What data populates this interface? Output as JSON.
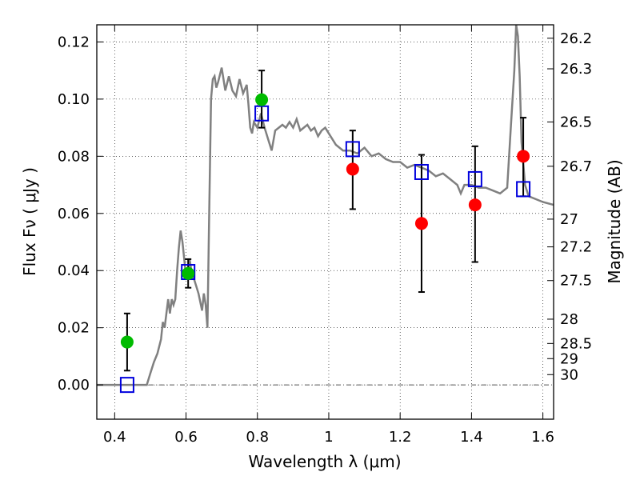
{
  "chart_data": {
    "type": "scatter",
    "xlabel": "Wavelength  λ (μm)",
    "ylabel": "Flux  Fν  ( μJy )",
    "ylabel_right": "Magnitude (AB)",
    "xlim": [
      0.35,
      1.63
    ],
    "ylim": [
      -0.012,
      0.126
    ],
    "grid": true,
    "x_ticks": [
      0.4,
      0.6,
      0.8,
      1.0,
      1.2,
      1.4,
      1.6
    ],
    "x_tick_labels": [
      "0.4",
      "0.6",
      "0.8",
      "1",
      "1.2",
      "1.4",
      "1.6"
    ],
    "y_ticks": [
      0.0,
      0.02,
      0.04,
      0.06,
      0.08,
      0.1,
      0.12
    ],
    "y_tick_labels": [
      "0.00",
      "0.02",
      "0.04",
      "0.06",
      "0.08",
      "0.10",
      "0.12"
    ],
    "right_ticks": [
      {
        "label": "26.2",
        "flux": 0.1213
      },
      {
        "label": "26.3",
        "flux": 0.1106
      },
      {
        "label": "26.5",
        "flux": 0.092
      },
      {
        "label": "26.7",
        "flux": 0.0765
      },
      {
        "label": "27",
        "flux": 0.058
      },
      {
        "label": "27.2",
        "flux": 0.0483
      },
      {
        "label": "27.5",
        "flux": 0.0365
      },
      {
        "label": "28",
        "flux": 0.023
      },
      {
        "label": "28.5",
        "flux": 0.0145
      },
      {
        "label": "29",
        "flux": 0.0092
      },
      {
        "label": "30",
        "flux": 0.0036
      }
    ],
    "colors": {
      "green": "#00bb00",
      "red": "#ff0000",
      "square": "#0000dd",
      "model": "#808080",
      "errorbar": "#000000"
    },
    "model_spectrum": {
      "x": [
        0.35,
        0.49,
        0.5,
        0.51,
        0.52,
        0.53,
        0.535,
        0.54,
        0.55,
        0.555,
        0.56,
        0.565,
        0.57,
        0.575,
        0.58,
        0.585,
        0.59,
        0.6,
        0.605,
        0.61,
        0.615,
        0.625,
        0.635,
        0.645,
        0.65,
        0.655,
        0.66,
        0.665,
        0.67,
        0.675,
        0.68,
        0.685,
        0.69,
        0.7,
        0.71,
        0.72,
        0.73,
        0.74,
        0.75,
        0.76,
        0.77,
        0.775,
        0.78,
        0.785,
        0.79,
        0.8,
        0.81,
        0.82,
        0.83,
        0.84,
        0.85,
        0.86,
        0.87,
        0.88,
        0.89,
        0.9,
        0.91,
        0.92,
        0.93,
        0.94,
        0.95,
        0.96,
        0.97,
        0.98,
        0.99,
        1.0,
        1.02,
        1.04,
        1.06,
        1.08,
        1.1,
        1.12,
        1.14,
        1.16,
        1.18,
        1.2,
        1.22,
        1.24,
        1.26,
        1.28,
        1.3,
        1.32,
        1.34,
        1.36,
        1.37,
        1.38,
        1.4,
        1.42,
        1.44,
        1.46,
        1.48,
        1.5,
        1.51,
        1.52,
        1.525,
        1.53,
        1.535,
        1.54,
        1.55,
        1.56,
        1.6,
        1.63
      ],
      "y": [
        0.0,
        0.0,
        0.004,
        0.008,
        0.011,
        0.016,
        0.022,
        0.02,
        0.03,
        0.025,
        0.03,
        0.028,
        0.03,
        0.04,
        0.048,
        0.054,
        0.05,
        0.038,
        0.04,
        0.044,
        0.04,
        0.036,
        0.032,
        0.026,
        0.032,
        0.028,
        0.02,
        0.06,
        0.1,
        0.107,
        0.108,
        0.104,
        0.106,
        0.111,
        0.103,
        0.108,
        0.103,
        0.101,
        0.107,
        0.102,
        0.105,
        0.098,
        0.09,
        0.088,
        0.092,
        0.09,
        0.095,
        0.09,
        0.086,
        0.082,
        0.089,
        0.09,
        0.091,
        0.09,
        0.092,
        0.09,
        0.093,
        0.089,
        0.09,
        0.091,
        0.089,
        0.09,
        0.087,
        0.089,
        0.09,
        0.088,
        0.084,
        0.082,
        0.082,
        0.081,
        0.083,
        0.08,
        0.081,
        0.079,
        0.078,
        0.078,
        0.076,
        0.077,
        0.076,
        0.075,
        0.073,
        0.074,
        0.072,
        0.07,
        0.067,
        0.07,
        0.07,
        0.069,
        0.069,
        0.068,
        0.067,
        0.069,
        0.09,
        0.11,
        0.126,
        0.122,
        0.108,
        0.085,
        0.07,
        0.066,
        0.064,
        0.063
      ]
    },
    "errorbars": [
      {
        "x": 0.435,
        "lo": 0.005,
        "hi": 0.025
      },
      {
        "x": 0.606,
        "lo": 0.034,
        "hi": 0.044
      },
      {
        "x": 0.812,
        "lo": 0.09,
        "hi": 0.11
      },
      {
        "x": 1.067,
        "lo": 0.0615,
        "hi": 0.089
      },
      {
        "x": 1.26,
        "lo": 0.0325,
        "hi": 0.0805
      },
      {
        "x": 1.41,
        "lo": 0.043,
        "hi": 0.0835
      },
      {
        "x": 1.545,
        "lo": 0.066,
        "hi": 0.0935
      }
    ],
    "green_points": {
      "x": [
        0.435,
        0.606,
        0.812
      ],
      "y": [
        0.015,
        0.039,
        0.0998
      ]
    },
    "red_points": {
      "x": [
        1.067,
        1.26,
        1.41,
        1.545
      ],
      "y": [
        0.0755,
        0.0565,
        0.063,
        0.08
      ]
    },
    "model_squares": {
      "x": [
        0.435,
        0.606,
        0.812,
        1.067,
        1.26,
        1.41,
        1.545
      ],
      "y": [
        0.0,
        0.0395,
        0.095,
        0.0825,
        0.0745,
        0.072,
        0.0685
      ]
    }
  }
}
